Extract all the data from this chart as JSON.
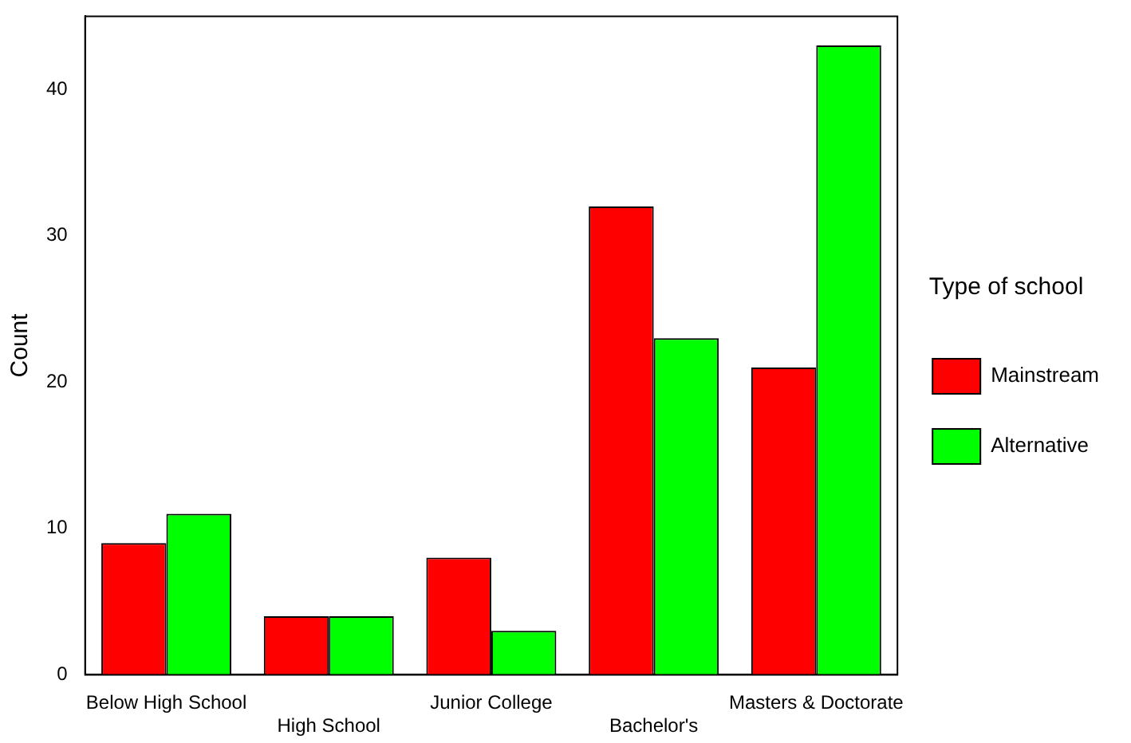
{
  "chart_data": {
    "type": "bar",
    "ylabel": "Count",
    "legend_title": "Type of school",
    "categories": [
      "Below High School",
      "High School",
      "Junior College",
      "Bachelor's",
      "Masters & Doctorate"
    ],
    "series": [
      {
        "name": "Mainstream",
        "color": "#ff0000",
        "values": [
          9,
          4,
          8,
          32,
          21
        ]
      },
      {
        "name": "Alternative",
        "color": "#00ff00",
        "values": [
          11,
          4,
          3,
          23,
          43
        ]
      }
    ],
    "ylim": [
      0,
      45
    ],
    "yticks": [
      0,
      10,
      20,
      30,
      40
    ],
    "grid": false,
    "legend": "right"
  }
}
